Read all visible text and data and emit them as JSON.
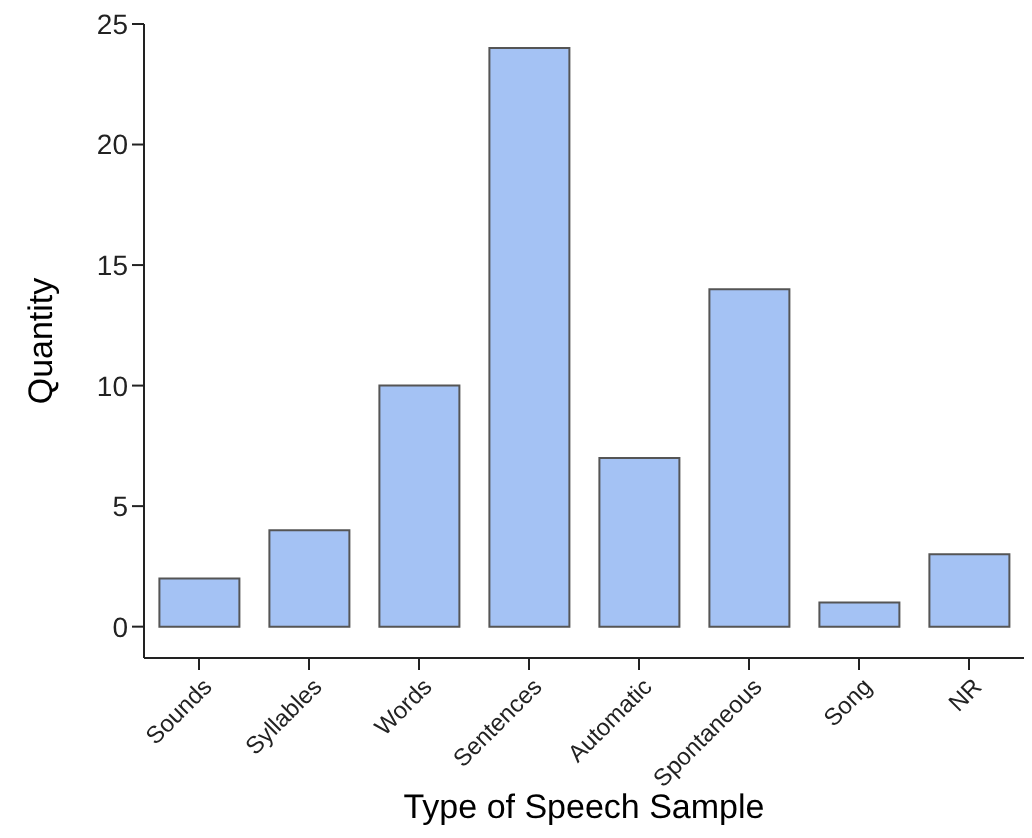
{
  "chart_data": {
    "type": "bar",
    "xlabel": "Type of Speech Sample",
    "ylabel": "Quantity",
    "categories": [
      "Sounds",
      "Syllables",
      "Words",
      "Sentences",
      "Automatic",
      "Spontaneous",
      "Song",
      "NR"
    ],
    "values": [
      2,
      4,
      10,
      24,
      7,
      14,
      1,
      3
    ],
    "color": "#a4c2f4",
    "ylim": [
      -1.3,
      25
    ],
    "yticks": [
      0,
      5,
      10,
      15,
      20,
      25
    ],
    "grid": false
  }
}
